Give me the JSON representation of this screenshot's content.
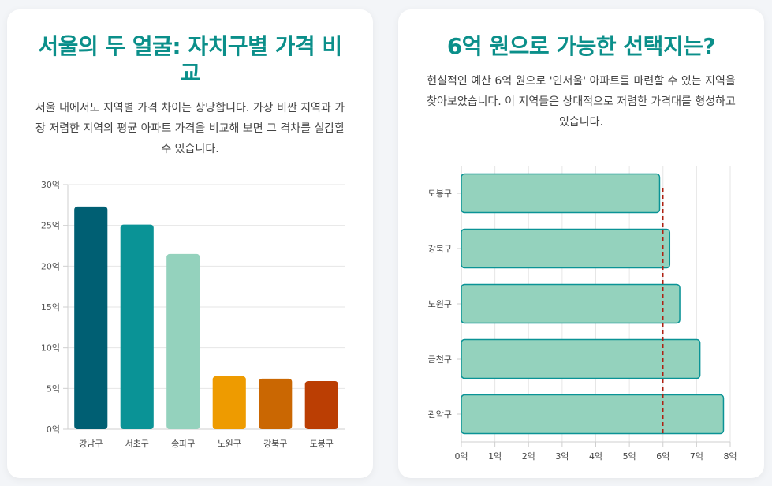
{
  "left": {
    "title": "서울의 두 얼굴: 자치구별 가격 비교",
    "description": "서울 내에서도 지역별 가격 차이는 상당합니다. 가장 비싼 지역과 가장 저렴한 지역의 평균 아파트 가격을 비교해 보면 그 격차를 실감할 수 있습니다."
  },
  "right": {
    "title": "6억 원으로 가능한 선택지는?",
    "description": "현실적인 예산 6억 원으로 '인서울' 아파트를 마련할 수 있는 지역을 찾아보았습니다. 이 지역들은 상대적으로 저렴한 가격대를 형성하고 있습니다."
  },
  "chart_data": [
    {
      "type": "bar",
      "orientation": "vertical",
      "categories": [
        "강남구",
        "서초구",
        "송파구",
        "노원구",
        "강북구",
        "도봉구"
      ],
      "values": [
        27.3,
        25.1,
        21.5,
        6.5,
        6.2,
        5.9
      ],
      "colors": [
        "#005f73",
        "#0a9396",
        "#94d2bd",
        "#ee9b00",
        "#ca6702",
        "#bb3e03"
      ],
      "ylim": [
        0,
        30
      ],
      "yticks": [
        0,
        5,
        10,
        15,
        20,
        25,
        30
      ],
      "ytick_labels": [
        "0억",
        "5억",
        "10억",
        "15억",
        "20억",
        "25억",
        "30억"
      ],
      "grid": true,
      "xlabel": "",
      "ylabel": ""
    },
    {
      "type": "bar",
      "orientation": "horizontal",
      "categories": [
        "도봉구",
        "강북구",
        "노원구",
        "금천구",
        "관악구"
      ],
      "values": [
        5.9,
        6.2,
        6.5,
        7.1,
        7.8
      ],
      "bar_color": "#94d2bd",
      "bar_border": "#0a9396",
      "xlim": [
        0,
        8
      ],
      "xticks": [
        0,
        1,
        2,
        3,
        4,
        5,
        6,
        7,
        8
      ],
      "xtick_labels": [
        "0억",
        "1억",
        "2억",
        "3억",
        "4억",
        "5억",
        "6억",
        "7억",
        "8억"
      ],
      "reference_line": {
        "value": 6,
        "color": "#ae2012"
      },
      "grid": true,
      "xlabel": "",
      "ylabel": ""
    }
  ]
}
